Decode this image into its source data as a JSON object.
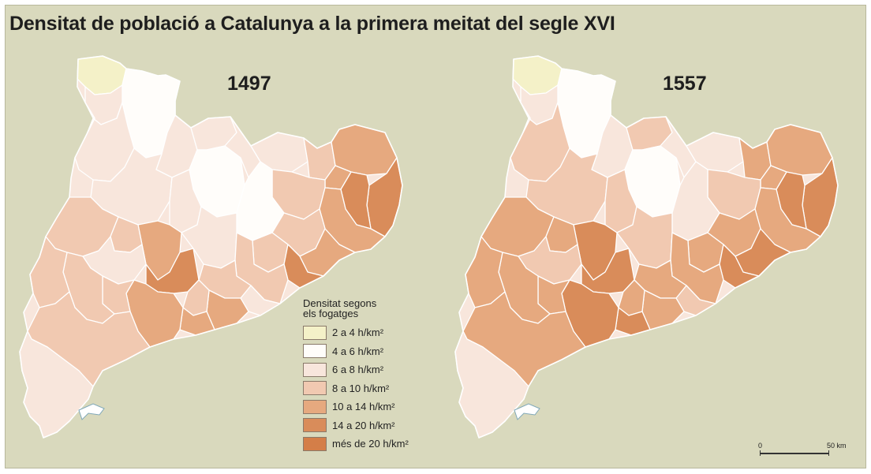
{
  "title": "Densitat de població a Catalunya a la primera meitat del segle XVI",
  "maps": [
    {
      "year": "1497",
      "regions": [
        {
          "id": "val-d-aran",
          "class": 0
        },
        {
          "id": "pallars-sobira",
          "class": 1
        },
        {
          "id": "alta-ribagorca",
          "class": 2
        },
        {
          "id": "pallars-jussa",
          "class": 2
        },
        {
          "id": "alt-urgell",
          "class": 2
        },
        {
          "id": "cerdanya",
          "class": 2
        },
        {
          "id": "solsones",
          "class": 1
        },
        {
          "id": "bergueda",
          "class": 2
        },
        {
          "id": "ripolles",
          "class": 2
        },
        {
          "id": "garrotxa",
          "class": 3
        },
        {
          "id": "alt-emporda",
          "class": 4
        },
        {
          "id": "baix-emporda",
          "class": 5
        },
        {
          "id": "girones",
          "class": 5
        },
        {
          "id": "pla-estany",
          "class": 4
        },
        {
          "id": "osona",
          "class": 3
        },
        {
          "id": "selva",
          "class": 4
        },
        {
          "id": "bages",
          "class": 1
        },
        {
          "id": "noguera",
          "class": 2
        },
        {
          "id": "segarra",
          "class": 2
        },
        {
          "id": "urgell",
          "class": 4
        },
        {
          "id": "anoia",
          "class": 2
        },
        {
          "id": "valles-oriental",
          "class": 3
        },
        {
          "id": "valles-occidental",
          "class": 3
        },
        {
          "id": "maresme",
          "class": 4
        },
        {
          "id": "barcelones",
          "class": 5
        },
        {
          "id": "baix-llobregat",
          "class": 3
        },
        {
          "id": "garraf",
          "class": 2
        },
        {
          "id": "alt-penedes",
          "class": 3
        },
        {
          "id": "baix-penedes",
          "class": 4
        },
        {
          "id": "segria",
          "class": 3
        },
        {
          "id": "pla-urgell",
          "class": 3
        },
        {
          "id": "garrigues",
          "class": 2
        },
        {
          "id": "conca-barbera",
          "class": 5
        },
        {
          "id": "alt-camp",
          "class": 3
        },
        {
          "id": "tarragones",
          "class": 4
        },
        {
          "id": "baix-camp",
          "class": 4
        },
        {
          "id": "priorat",
          "class": 3
        },
        {
          "id": "ribera-ebre",
          "class": 3
        },
        {
          "id": "terra-alta",
          "class": 3
        },
        {
          "id": "baix-ebre",
          "class": 3
        },
        {
          "id": "montsia",
          "class": 2
        }
      ]
    },
    {
      "year": "1557",
      "regions": [
        {
          "id": "val-d-aran",
          "class": 0
        },
        {
          "id": "pallars-sobira",
          "class": 1
        },
        {
          "id": "alta-ribagorca",
          "class": 2
        },
        {
          "id": "pallars-jussa",
          "class": 3
        },
        {
          "id": "alt-urgell",
          "class": 2
        },
        {
          "id": "cerdanya",
          "class": 3
        },
        {
          "id": "solsones",
          "class": 1
        },
        {
          "id": "bergueda",
          "class": 2
        },
        {
          "id": "ripolles",
          "class": 2
        },
        {
          "id": "garrotxa",
          "class": 4
        },
        {
          "id": "alt-emporda",
          "class": 4
        },
        {
          "id": "baix-emporda",
          "class": 5
        },
        {
          "id": "girones",
          "class": 5
        },
        {
          "id": "pla-estany",
          "class": 4
        },
        {
          "id": "osona",
          "class": 3
        },
        {
          "id": "selva",
          "class": 4
        },
        {
          "id": "bages",
          "class": 2
        },
        {
          "id": "noguera",
          "class": 3
        },
        {
          "id": "segarra",
          "class": 3
        },
        {
          "id": "urgell",
          "class": 5
        },
        {
          "id": "anoia",
          "class": 3
        },
        {
          "id": "valles-oriental",
          "class": 4
        },
        {
          "id": "valles-occidental",
          "class": 4
        },
        {
          "id": "maresme",
          "class": 5
        },
        {
          "id": "barcelones",
          "class": 5
        },
        {
          "id": "baix-llobregat",
          "class": 4
        },
        {
          "id": "garraf",
          "class": 3
        },
        {
          "id": "alt-penedes",
          "class": 4
        },
        {
          "id": "baix-penedes",
          "class": 4
        },
        {
          "id": "segria",
          "class": 4
        },
        {
          "id": "pla-urgell",
          "class": 4
        },
        {
          "id": "garrigues",
          "class": 3
        },
        {
          "id": "conca-barbera",
          "class": 5
        },
        {
          "id": "alt-camp",
          "class": 4
        },
        {
          "id": "tarragones",
          "class": 5
        },
        {
          "id": "baix-camp",
          "class": 5
        },
        {
          "id": "priorat",
          "class": 4
        },
        {
          "id": "ribera-ebre",
          "class": 4
        },
        {
          "id": "terra-alta",
          "class": 4
        },
        {
          "id": "baix-ebre",
          "class": 4
        },
        {
          "id": "montsia",
          "class": 2
        }
      ]
    }
  ],
  "legend": {
    "title_line1": "Densitat segons",
    "title_line2": "els fogatges",
    "items": [
      {
        "label": "2 a 4 h/km²",
        "color": "#f4f1c8"
      },
      {
        "label": "4 a 6 h/km²",
        "color": "#fffdfa"
      },
      {
        "label": "6 a 8 h/km²",
        "color": "#f8e6dc"
      },
      {
        "label": "8 a 10 h/km²",
        "color": "#f1c9b1"
      },
      {
        "label": "10 a 14 h/km²",
        "color": "#e6a97f"
      },
      {
        "label": "14 a 20 h/km²",
        "color": "#d98c5a"
      },
      {
        "label": "més de 20 h/km²",
        "color": "#d47e48"
      }
    ]
  },
  "scale": {
    "start": "0",
    "end": "50 km"
  },
  "colors": {
    "background": "#d9d9bd",
    "border": "#ffffff",
    "coast": "#7fa8b8"
  }
}
